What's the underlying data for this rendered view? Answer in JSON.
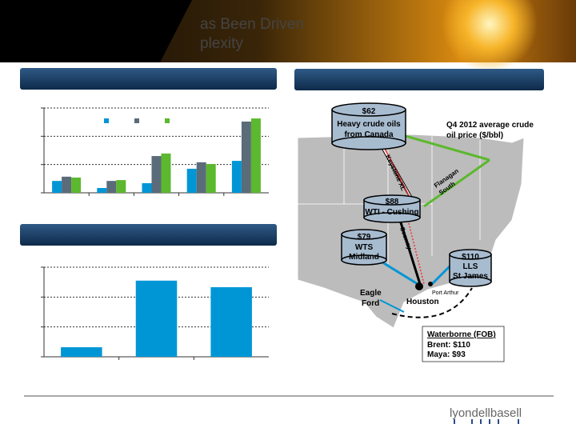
{
  "header": {
    "title_fragments": [
      "as Been Driven",
      "plexity"
    ]
  },
  "chart_data": [
    {
      "type": "bar",
      "categories": [
        null,
        null,
        null,
        null,
        null
      ],
      "ylim": [
        0,
        3
      ],
      "yticks": [
        0,
        1,
        2,
        3
      ],
      "grid": true,
      "legend": "top",
      "series": [
        {
          "color": "#0096d6",
          "values": [
            0.42,
            0.17,
            0.34,
            0.85,
            1.13
          ]
        },
        {
          "color": "#5a6b7a",
          "values": [
            0.57,
            0.42,
            1.3,
            1.08,
            2.52
          ]
        },
        {
          "color": "#5cb82e",
          "values": [
            0.54,
            0.45,
            1.39,
            1.02,
            2.63
          ]
        }
      ]
    },
    {
      "type": "bar",
      "categories": [
        null,
        null,
        null
      ],
      "ylim": [
        0,
        3
      ],
      "yticks": [
        0,
        1,
        2,
        3
      ],
      "grid": true,
      "values": [
        0.32,
        2.55,
        2.33
      ],
      "color": "#0096d6"
    }
  ],
  "map": {
    "canada": {
      "price": "$62",
      "lines": [
        "Heavy crude oils",
        "from Canada"
      ]
    },
    "note": [
      "Q4 2012 average crude",
      "oil price ($/bbl)"
    ],
    "pipelines": {
      "keystone": "Keystone XL",
      "flanagan": [
        "Flanagan",
        "South"
      ],
      "seaway": "Seaway"
    },
    "cushing": {
      "price": "$88",
      "lines": [
        "WTI - Cushing"
      ]
    },
    "midland": {
      "price": "$79",
      "lines": [
        "WTS",
        "Midland"
      ]
    },
    "stjames": {
      "price": "$110",
      "lines": [
        "LLS",
        "St James"
      ]
    },
    "port_arthur": "Port Arthur",
    "houston": "Houston",
    "eagle_ford": [
      "Eagle",
      "Ford"
    ],
    "waterborne": {
      "title": "Waterborne (FOB)",
      "lines": [
        "Brent: $110",
        "Maya: $93"
      ]
    }
  },
  "footer": {
    "logo": "lyondellbasell"
  }
}
